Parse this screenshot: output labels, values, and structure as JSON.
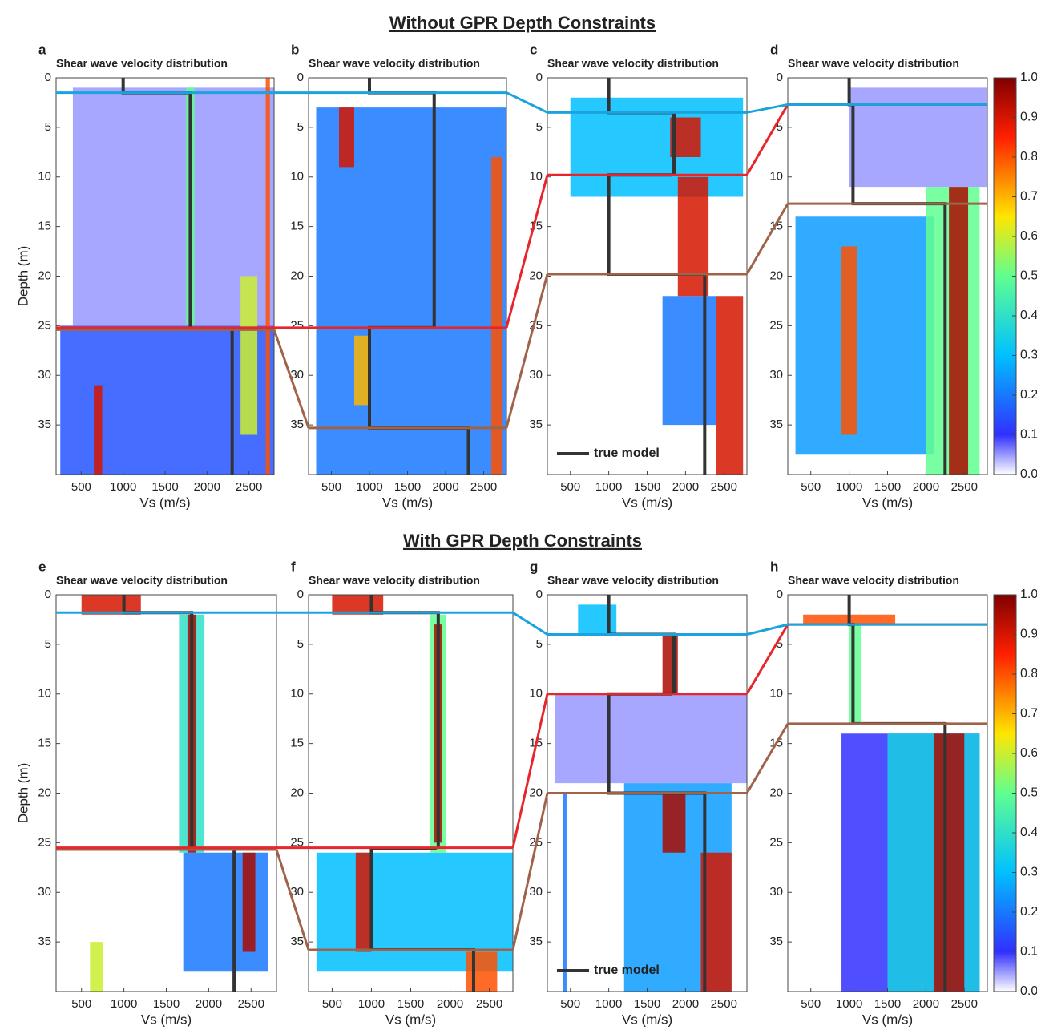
{
  "figure_titles": [
    "Without GPR Depth Constraints",
    "With GPR Depth Constraints"
  ],
  "colorbar": {
    "lim": [
      0,
      1
    ],
    "ticks": [
      {
        "value": 0,
        "label": "0.0"
      },
      0.1,
      0.2,
      0.3,
      0.4,
      0.5,
      0.6,
      0.7,
      0.8,
      0.9,
      {
        "value": 1,
        "label": "1.0"
      }
    ]
  },
  "chart_data": [
    {
      "type": "heatmap",
      "label": "a",
      "title": "Shear wave velocity distribution",
      "xlabel": "Vs (m/s)",
      "ylabel": "Depth (m)",
      "xlim": [
        200,
        2800
      ],
      "ylim": [
        0,
        40
      ],
      "y_inverted": true,
      "xticks": [
        500,
        1000,
        1500,
        2000,
        2500
      ],
      "yticks": [
        0,
        5,
        10,
        15,
        20,
        25,
        30,
        35
      ],
      "zones": [
        {
          "vs": [
            400,
            2800
          ],
          "depth": [
            1,
            25
          ],
          "level": 0.05
        },
        {
          "vs": [
            250,
            2800
          ],
          "depth": [
            25,
            40
          ],
          "level": 0.15
        },
        {
          "vs": [
            1750,
            1850
          ],
          "depth": [
            1,
            25
          ],
          "level": 0.5
        },
        {
          "vs": [
            2400,
            2600
          ],
          "depth": [
            20,
            36
          ],
          "level": 0.6
        },
        {
          "vs": [
            2700,
            2750
          ],
          "depth": [
            0,
            40
          ],
          "level": 0.8
        },
        {
          "vs": [
            650,
            750
          ],
          "depth": [
            31,
            40
          ],
          "level": 0.9
        }
      ],
      "true_model": {
        "color": "#333333",
        "vs": [
          1000,
          1800,
          2300
        ],
        "depth": [
          0,
          1.5,
          25.3,
          40
        ]
      },
      "interfaces": [
        {
          "color": "#a0634a",
          "depth": 25.4
        },
        {
          "color": "#e8252b",
          "depth": 25.2
        },
        {
          "color": "#1ba3dd",
          "depth": 1.5
        }
      ]
    },
    {
      "type": "heatmap",
      "label": "b",
      "title": "Shear wave velocity distribution",
      "xlabel": "Vs (m/s)",
      "xlim": [
        200,
        2800
      ],
      "ylim": [
        0,
        40
      ],
      "y_inverted": true,
      "xticks": [
        500,
        1000,
        1500,
        2000,
        2500
      ],
      "yticks": [
        0,
        5,
        10,
        15,
        20,
        25,
        30,
        35
      ],
      "zones": [
        {
          "vs": [
            300,
            2800
          ],
          "depth": [
            3,
            40
          ],
          "level": 0.2
        },
        {
          "vs": [
            600,
            800
          ],
          "depth": [
            3,
            9
          ],
          "level": 0.9
        },
        {
          "vs": [
            2600,
            2750
          ],
          "depth": [
            8,
            40
          ],
          "level": 0.8
        },
        {
          "vs": [
            800,
            1000
          ],
          "depth": [
            26,
            33
          ],
          "level": 0.7
        }
      ],
      "true_model": {
        "color": "#333333",
        "vs": [
          1000,
          1850,
          1000,
          2300
        ],
        "depth": [
          0,
          1.5,
          25.2,
          35.3,
          40
        ]
      },
      "interfaces": [
        {
          "color": "#a0634a",
          "depth": 35.3
        },
        {
          "color": "#e8252b",
          "depth": 25.2
        },
        {
          "color": "#1ba3dd",
          "depth": 1.5
        }
      ]
    },
    {
      "type": "heatmap",
      "label": "c",
      "title": "Shear wave velocity distribution",
      "xlabel": "Vs (m/s)",
      "xlim": [
        200,
        2800
      ],
      "ylim": [
        0,
        40
      ],
      "y_inverted": true,
      "xticks": [
        500,
        1000,
        1500,
        2000,
        2500
      ],
      "yticks": [
        0,
        5,
        10,
        15,
        20,
        25,
        30,
        35
      ],
      "zones": [
        {
          "vs": [
            500,
            2750
          ],
          "depth": [
            2,
            12
          ],
          "level": 0.3
        },
        {
          "vs": [
            1700,
            2400
          ],
          "depth": [
            22,
            35
          ],
          "level": 0.2
        },
        {
          "vs": [
            1800,
            2200
          ],
          "depth": [
            4,
            8
          ],
          "level": 0.9
        },
        {
          "vs": [
            1900,
            2300
          ],
          "depth": [
            10,
            22
          ],
          "level": 0.9
        },
        {
          "vs": [
            2400,
            2750
          ],
          "depth": [
            22,
            40
          ],
          "level": 0.9
        }
      ],
      "true_model": {
        "name": "true model",
        "color": "#333333",
        "vs": [
          1000,
          1850,
          1000,
          2250
        ],
        "depth": [
          0,
          3.5,
          9.8,
          19.8,
          40
        ]
      },
      "legend": "lower left",
      "interfaces": [
        {
          "color": "#a0634a",
          "depth": 19.8
        },
        {
          "color": "#e8252b",
          "depth": 9.8
        },
        {
          "color": "#1ba3dd",
          "depth": 3.5
        }
      ]
    },
    {
      "type": "heatmap",
      "label": "d",
      "title": "Shear wave velocity distribution",
      "xlabel": "Vs (m/s)",
      "xlim": [
        200,
        2800
      ],
      "ylim": [
        0,
        40
      ],
      "y_inverted": true,
      "xticks": [
        500,
        1000,
        1500,
        2000,
        2500
      ],
      "yticks": [
        0,
        5,
        10,
        15,
        20,
        25,
        30,
        35
      ],
      "zones": [
        {
          "vs": [
            1000,
            2800
          ],
          "depth": [
            1,
            11
          ],
          "level": 0.05
        },
        {
          "vs": [
            300,
            2100
          ],
          "depth": [
            14,
            38
          ],
          "level": 0.25
        },
        {
          "vs": [
            2000,
            2700
          ],
          "depth": [
            11,
            40
          ],
          "level": 0.5
        },
        {
          "vs": [
            2300,
            2550
          ],
          "depth": [
            11,
            40
          ],
          "level": 0.95
        },
        {
          "vs": [
            900,
            1100
          ],
          "depth": [
            17,
            36
          ],
          "level": 0.8
        }
      ],
      "true_model": {
        "color": "#333333",
        "vs": [
          1000,
          1050,
          2250
        ],
        "depth": [
          0,
          2.7,
          12.7,
          40
        ]
      },
      "colorbar": true,
      "interfaces": [
        {
          "color": "#a0634a",
          "depth": 12.7
        },
        {
          "color": "#e8252b",
          "depth": 2.7
        },
        {
          "color": "#1ba3dd",
          "depth": 2.7
        }
      ]
    },
    {
      "type": "heatmap",
      "label": "e",
      "title": "Shear wave velocity distribution",
      "xlabel": "Vs (m/s)",
      "ylabel": "Depth (m)",
      "xlim": [
        200,
        2800
      ],
      "ylim": [
        0,
        40
      ],
      "y_inverted": true,
      "xticks": [
        500,
        1000,
        1500,
        2000,
        2500
      ],
      "yticks": [
        0,
        5,
        10,
        15,
        20,
        25,
        30,
        35
      ],
      "zones": [
        {
          "vs": [
            500,
            1200
          ],
          "depth": [
            0,
            2
          ],
          "level": 0.9
        },
        {
          "vs": [
            1650,
            1950
          ],
          "depth": [
            2,
            26
          ],
          "level": 0.4
        },
        {
          "vs": [
            1750,
            1850
          ],
          "depth": [
            2,
            26
          ],
          "level": 0.95
        },
        {
          "vs": [
            1700,
            2700
          ],
          "depth": [
            26,
            38
          ],
          "level": 0.2
        },
        {
          "vs": [
            2400,
            2550
          ],
          "depth": [
            26,
            36
          ],
          "level": 0.95
        },
        {
          "vs": [
            600,
            750
          ],
          "depth": [
            35,
            40
          ],
          "level": 0.6
        }
      ],
      "true_model": {
        "color": "#333333",
        "vs": [
          1000,
          1800,
          2300
        ],
        "depth": [
          0,
          1.8,
          25.6,
          40
        ]
      },
      "interfaces": [
        {
          "color": "#a0634a",
          "depth": 25.7
        },
        {
          "color": "#e8252b",
          "depth": 25.5
        },
        {
          "color": "#1ba3dd",
          "depth": 1.8
        }
      ]
    },
    {
      "type": "heatmap",
      "label": "f",
      "title": "Shear wave velocity distribution",
      "xlabel": "Vs (m/s)",
      "xlim": [
        200,
        2800
      ],
      "ylim": [
        0,
        40
      ],
      "y_inverted": true,
      "xticks": [
        500,
        1000,
        1500,
        2000,
        2500
      ],
      "yticks": [
        0,
        5,
        10,
        15,
        20,
        25,
        30,
        35
      ],
      "zones": [
        {
          "vs": [
            500,
            1150
          ],
          "depth": [
            0,
            2
          ],
          "level": 0.9
        },
        {
          "vs": [
            300,
            2800
          ],
          "depth": [
            26,
            38
          ],
          "level": 0.3
        },
        {
          "vs": [
            1750,
            1950
          ],
          "depth": [
            2,
            26
          ],
          "level": 0.5
        },
        {
          "vs": [
            1800,
            1900
          ],
          "depth": [
            3,
            25
          ],
          "level": 0.95
        },
        {
          "vs": [
            800,
            1000
          ],
          "depth": [
            26,
            36
          ],
          "level": 0.9
        },
        {
          "vs": [
            2200,
            2600
          ],
          "depth": [
            36,
            40
          ],
          "level": 0.8
        }
      ],
      "true_model": {
        "color": "#333333",
        "vs": [
          1000,
          1850,
          1000,
          2300
        ],
        "depth": [
          0,
          1.8,
          25.6,
          35.8,
          40
        ]
      },
      "interfaces": [
        {
          "color": "#a0634a",
          "depth": 35.8
        },
        {
          "color": "#e8252b",
          "depth": 25.5
        },
        {
          "color": "#1ba3dd",
          "depth": 1.8
        }
      ]
    },
    {
      "type": "heatmap",
      "label": "g",
      "title": "Shear wave velocity distribution",
      "xlabel": "Vs (m/s)",
      "xlim": [
        200,
        2800
      ],
      "ylim": [
        0,
        40
      ],
      "y_inverted": true,
      "xticks": [
        500,
        1000,
        1500,
        2000,
        2500
      ],
      "yticks": [
        0,
        5,
        10,
        15,
        20,
        25,
        30,
        35
      ],
      "zones": [
        {
          "vs": [
            300,
            2800
          ],
          "depth": [
            10,
            19
          ],
          "level": 0.05
        },
        {
          "vs": [
            1200,
            2600
          ],
          "depth": [
            19,
            40
          ],
          "level": 0.25
        },
        {
          "vs": [
            600,
            1100
          ],
          "depth": [
            1,
            4
          ],
          "level": 0.3
        },
        {
          "vs": [
            1700,
            1900
          ],
          "depth": [
            4,
            10
          ],
          "level": 0.95
        },
        {
          "vs": [
            1700,
            2000
          ],
          "depth": [
            20,
            26
          ],
          "level": 0.95
        },
        {
          "vs": [
            2200,
            2600
          ],
          "depth": [
            26,
            40
          ],
          "level": 0.9
        },
        {
          "vs": [
            400,
            450
          ],
          "depth": [
            20,
            40
          ],
          "level": 0.2
        }
      ],
      "true_model": {
        "name": "true model",
        "color": "#333333",
        "vs": [
          1000,
          1850,
          1000,
          2250
        ],
        "depth": [
          0,
          4,
          10,
          20,
          40
        ]
      },
      "legend": "lower left",
      "interfaces": [
        {
          "color": "#a0634a",
          "depth": 20
        },
        {
          "color": "#e8252b",
          "depth": 10
        },
        {
          "color": "#1ba3dd",
          "depth": 4
        }
      ]
    },
    {
      "type": "heatmap",
      "label": "h",
      "title": "Shear wave velocity distribution",
      "xlabel": "Vs (m/s)",
      "xlim": [
        200,
        2800
      ],
      "ylim": [
        0,
        40
      ],
      "y_inverted": true,
      "xticks": [
        500,
        1000,
        1500,
        2000,
        2500
      ],
      "yticks": [
        0,
        5,
        10,
        15,
        20,
        25,
        30,
        35
      ],
      "zones": [
        {
          "vs": [
            900,
            2700
          ],
          "depth": [
            14,
            40
          ],
          "level": 0.1
        },
        {
          "vs": [
            1500,
            2700
          ],
          "depth": [
            14,
            40
          ],
          "level": 0.35
        },
        {
          "vs": [
            400,
            1600
          ],
          "depth": [
            2,
            3
          ],
          "level": 0.8
        },
        {
          "vs": [
            1000,
            1150
          ],
          "depth": [
            3,
            13
          ],
          "level": 0.5
        },
        {
          "vs": [
            2100,
            2500
          ],
          "depth": [
            14,
            40
          ],
          "level": 0.95
        }
      ],
      "true_model": {
        "color": "#333333",
        "vs": [
          1000,
          1050,
          2250
        ],
        "depth": [
          0,
          3,
          13,
          40
        ]
      },
      "colorbar": true,
      "interfaces": [
        {
          "color": "#a0634a",
          "depth": 13
        },
        {
          "color": "#e8252b",
          "depth": 3
        },
        {
          "color": "#1ba3dd",
          "depth": 3
        }
      ]
    }
  ]
}
